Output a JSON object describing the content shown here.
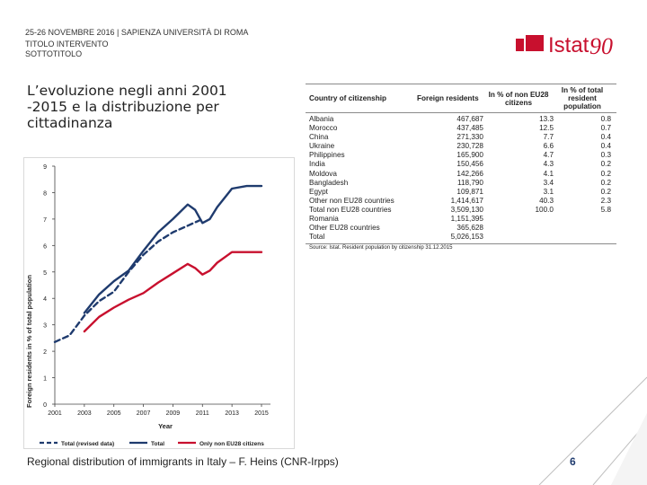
{
  "header": {
    "event": "25-26 NOVEMBRE 2016 | SAPIENZA UNIVERSITÀ DI ROMA",
    "title": "TITOLO INTERVENTO",
    "subtitle": "SOTTOTITOLO"
  },
  "logo": {
    "text": "Istat",
    "number": "90",
    "brand_color": "#c8102e"
  },
  "slide_title": {
    "line1": "L’evoluzione negli anni 2001",
    "line2": "-2015 e la distribuzione per",
    "line3": "cittadinanza"
  },
  "chart_data": {
    "type": "line",
    "title": "",
    "xlabel": "Year",
    "ylabel": "Foreign residents in % of total population",
    "x": [
      2001,
      2002,
      2003,
      2004,
      2005,
      2006,
      2007,
      2008,
      2009,
      2010,
      2011,
      2012,
      2013,
      2014,
      2015
    ],
    "xticks": [
      "2001",
      "2003",
      "2005",
      "2007",
      "2009",
      "2011",
      "2013",
      "2015"
    ],
    "yticks": [
      "0",
      "1",
      "2",
      "3",
      "4",
      "5",
      "6",
      "7",
      "8",
      "9"
    ],
    "xlim": [
      2001,
      2015
    ],
    "ylim": [
      0,
      9
    ],
    "series": [
      {
        "name": "Total (revised data)",
        "color": "#1f3b6e",
        "style": "dashed",
        "x": [
          2001,
          2002,
          2003,
          2004,
          2005,
          2006,
          2007,
          2008,
          2009,
          2010,
          2011
        ],
        "values": [
          2.35,
          2.6,
          3.35,
          3.9,
          4.25,
          5.0,
          5.65,
          6.15,
          6.5,
          6.75,
          7.0
        ]
      },
      {
        "name": "Total",
        "color": "#1f3b6e",
        "style": "solid",
        "x": [
          2003,
          2004,
          2005,
          2006,
          2007,
          2008,
          2009,
          2010,
          2010.5,
          2011,
          2011.5,
          2012,
          2013,
          2014,
          2015
        ],
        "values": [
          3.45,
          4.15,
          4.65,
          5.05,
          5.8,
          6.5,
          7.0,
          7.55,
          7.35,
          6.85,
          7.0,
          7.45,
          8.15,
          8.25,
          8.25
        ]
      },
      {
        "name": "Only non EU28 citizens",
        "color": "#c8102e",
        "style": "solid",
        "x": [
          2003,
          2004,
          2005,
          2006,
          2007,
          2008,
          2009,
          2010,
          2010.5,
          2011,
          2011.5,
          2012,
          2013,
          2014,
          2015
        ],
        "values": [
          2.75,
          3.3,
          3.65,
          3.95,
          4.2,
          4.6,
          4.95,
          5.3,
          5.15,
          4.9,
          5.05,
          5.35,
          5.75,
          5.75,
          5.75
        ]
      }
    ],
    "legend": "bottom"
  },
  "table": {
    "columns": [
      "Country of citizenship",
      "Foreign residents",
      "In % of non EU28 citizens",
      "In % of total resident population"
    ],
    "rows": [
      [
        "Albania",
        "467,687",
        "13.3",
        "0.8"
      ],
      [
        "Morocco",
        "437,485",
        "12.5",
        "0.7"
      ],
      [
        "China",
        "271,330",
        "7.7",
        "0.4"
      ],
      [
        "Ukraine",
        "230,728",
        "6.6",
        "0.4"
      ],
      [
        "Philippines",
        "165,900",
        "4.7",
        "0.3"
      ],
      [
        "India",
        "150,456",
        "4.3",
        "0.2"
      ],
      [
        "Moldova",
        "142,266",
        "4.1",
        "0.2"
      ],
      [
        "Bangladesh",
        "118,790",
        "3.4",
        "0.2"
      ],
      [
        "Egypt",
        "109,871",
        "3.1",
        "0.2"
      ],
      [
        "Other non EU28 countries",
        "1,414,617",
        "40.3",
        "2.3"
      ],
      [
        "Total non EU28 countries",
        "3,509,130",
        "100.0",
        "5.8"
      ],
      [
        "Romania",
        "1,151,395",
        "",
        ""
      ],
      [
        "Other EU28 countries",
        "365,628",
        "",
        ""
      ],
      [
        "Total",
        "5,026,153",
        "",
        ""
      ]
    ],
    "source": "Source: Istat. Resident population by citizenship 31.12.2015"
  },
  "footer": {
    "text": "Regional distribution of immigrants in Italy – F. Heins (CNR-Irpps)",
    "page": "6"
  }
}
